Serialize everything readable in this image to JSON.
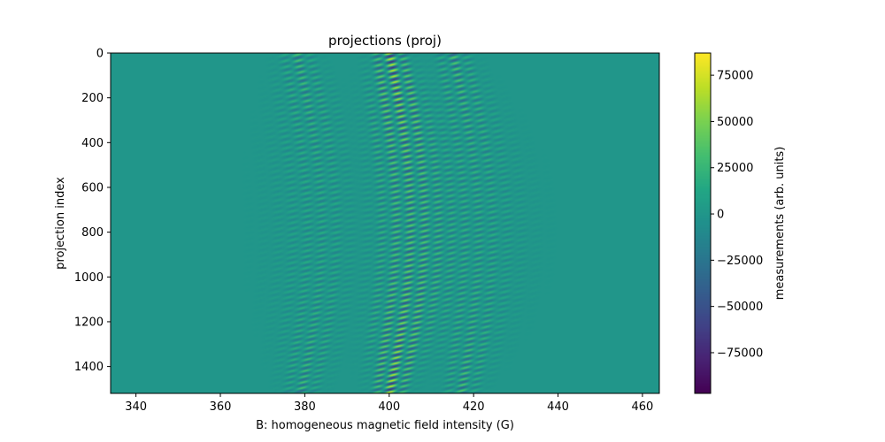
{
  "chart_data": {
    "type": "heatmap",
    "title": "projections (proj)",
    "xlabel": "B: homogeneous magnetic field intensity (G)",
    "ylabel": "projection index",
    "colorbar_label": "measurements (arb. units)",
    "colormap": "viridis",
    "xlim": [
      334,
      464
    ],
    "ylim": [
      1520,
      0
    ],
    "xticks": [
      340,
      360,
      380,
      400,
      420,
      440,
      460
    ],
    "yticks": [
      0,
      200,
      400,
      600,
      800,
      1000,
      1200,
      1400
    ],
    "clim": [
      -97000,
      87000
    ],
    "colorbar_ticks": [
      75000,
      50000,
      25000,
      0,
      -25000,
      -50000,
      -75000
    ],
    "colorbar_tick_labels": [
      "75000",
      "50000",
      "25000",
      "0",
      "−25000",
      "−50000",
      "−75000"
    ],
    "background_value": 0,
    "spectral_lines": [
      {
        "center_top": 378,
        "center_mid": 384,
        "center_bottom": 379,
        "amplitude": 35000
      },
      {
        "center_top": 400,
        "center_mid": 405,
        "center_bottom": 400,
        "amplitude": 75000
      },
      {
        "center_top": 415,
        "center_mid": 421,
        "center_bottom": 417,
        "amplitude": 40000
      }
    ]
  }
}
